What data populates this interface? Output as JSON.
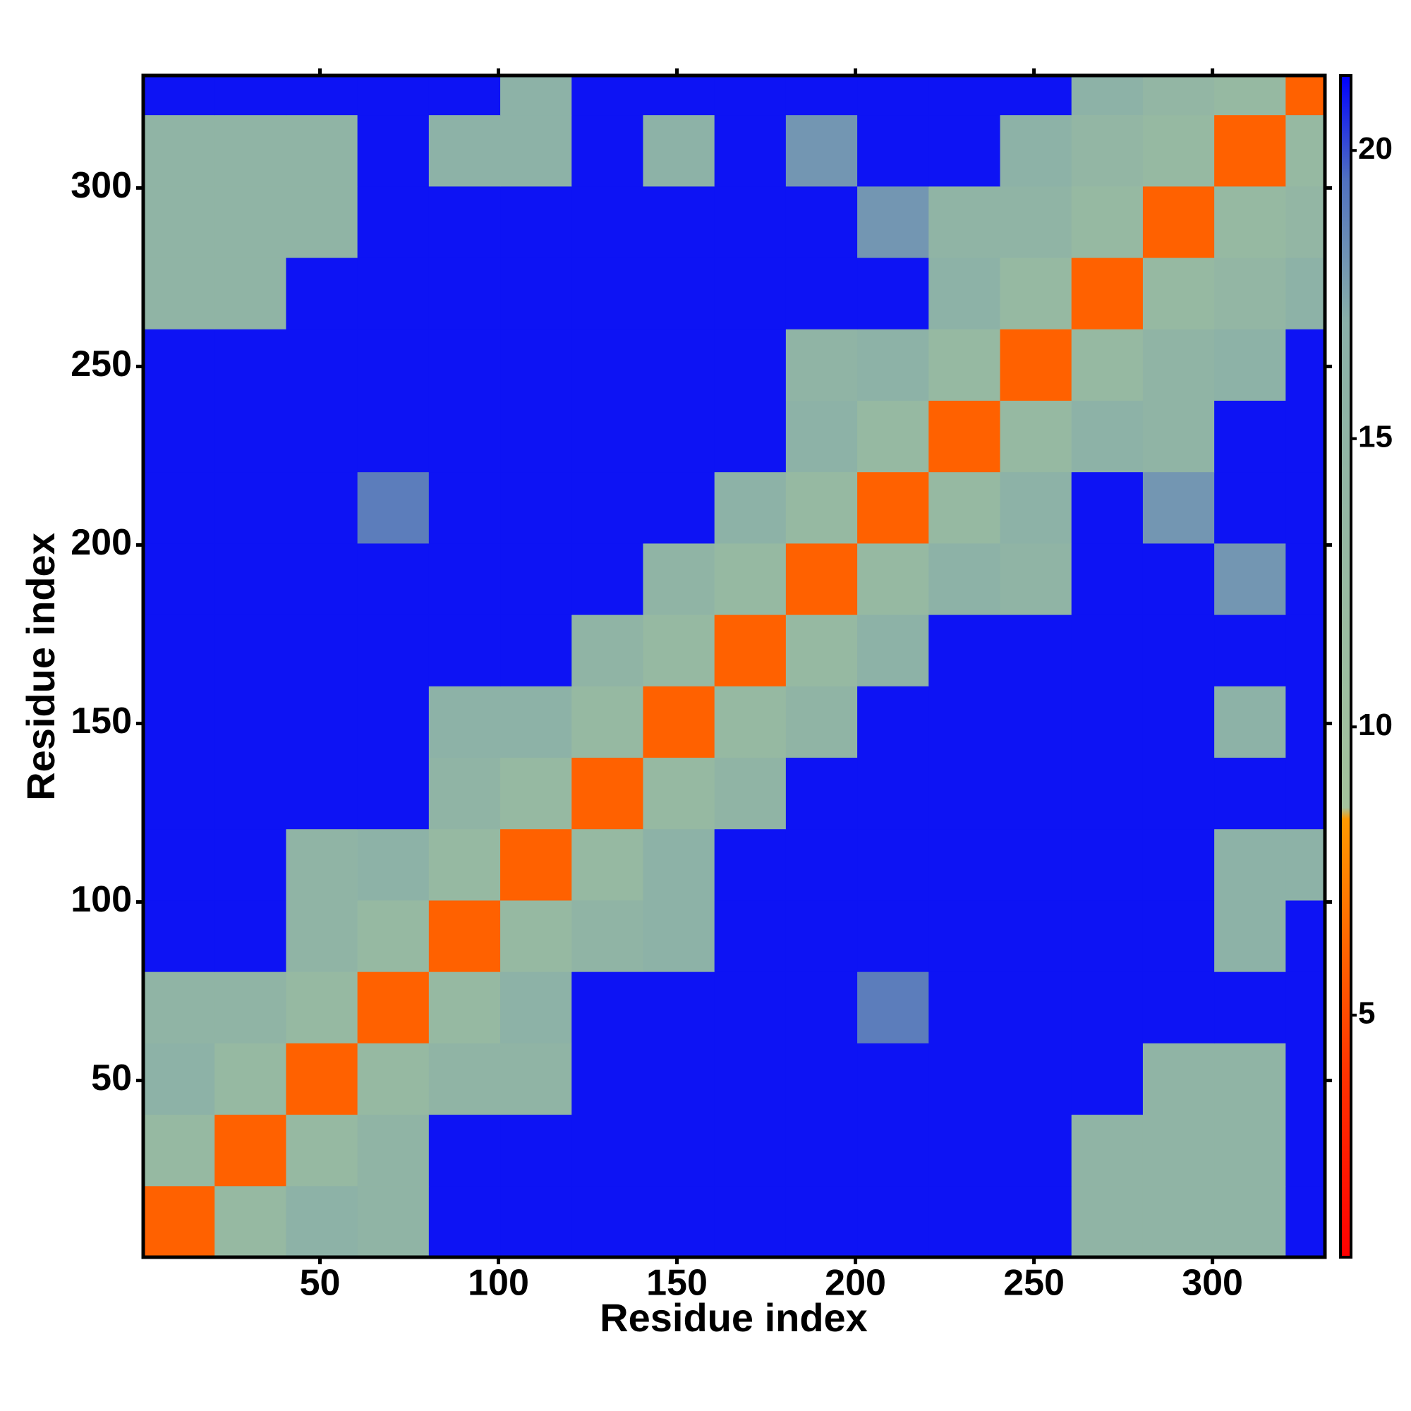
{
  "chart_data": {
    "type": "heatmap",
    "x_label": "Residue index",
    "y_label": "Residue index",
    "xbins": [
      0.5,
      20.5,
      40.5,
      60.5,
      80.5,
      100.5,
      120.5,
      140.5,
      160.5,
      180.5,
      200.5,
      220.5,
      240.5,
      260.5,
      280.5,
      300.5,
      320.5,
      331.5
    ],
    "ybins": [
      0.5,
      20.5,
      40.5,
      60.5,
      80.5,
      100.5,
      120.5,
      140.5,
      160.5,
      180.5,
      200.5,
      220.5,
      240.5,
      260.5,
      280.5,
      300.5,
      320.5,
      331.5
    ],
    "values": [
      [
        6,
        13,
        16,
        15,
        21,
        21,
        21,
        21,
        21,
        21,
        21,
        21,
        21,
        15,
        15,
        15,
        21
      ],
      [
        13,
        6,
        13,
        15,
        21,
        21,
        21,
        21,
        21,
        21,
        21,
        21,
        21,
        15,
        15,
        15,
        21
      ],
      [
        16,
        13,
        6,
        13,
        15,
        15,
        21,
        21,
        21,
        21,
        21,
        21,
        21,
        21,
        15,
        15,
        21
      ],
      [
        15,
        15,
        13,
        6,
        13,
        16,
        21,
        21,
        21,
        21,
        19,
        21,
        21,
        21,
        21,
        21,
        21
      ],
      [
        21,
        21,
        15,
        13,
        6,
        13,
        15,
        16,
        21,
        21,
        21,
        21,
        21,
        21,
        21,
        16,
        21
      ],
      [
        21,
        21,
        15,
        16,
        13,
        6,
        13,
        16,
        21,
        21,
        21,
        21,
        21,
        21,
        21,
        16,
        16
      ],
      [
        21,
        21,
        21,
        21,
        15,
        13,
        6,
        13,
        15,
        21,
        21,
        21,
        21,
        21,
        21,
        21,
        21
      ],
      [
        21,
        21,
        21,
        21,
        16,
        16,
        13,
        6,
        13,
        15,
        21,
        21,
        21,
        21,
        21,
        16,
        21
      ],
      [
        21,
        21,
        21,
        21,
        21,
        21,
        15,
        13,
        6,
        13,
        16,
        21,
        21,
        21,
        21,
        21,
        21
      ],
      [
        21,
        21,
        21,
        21,
        21,
        21,
        21,
        15,
        13,
        6,
        13,
        16,
        15,
        21,
        21,
        18,
        21
      ],
      [
        21,
        21,
        21,
        19,
        21,
        21,
        21,
        21,
        16,
        13,
        6,
        13,
        16,
        21,
        18,
        21,
        21
      ],
      [
        21,
        21,
        21,
        21,
        21,
        21,
        21,
        21,
        21,
        16,
        13,
        6,
        13,
        16,
        15,
        21,
        21
      ],
      [
        21,
        21,
        21,
        21,
        21,
        21,
        21,
        21,
        21,
        15,
        16,
        13,
        6,
        13,
        15,
        16,
        21
      ],
      [
        15,
        15,
        21,
        21,
        21,
        21,
        21,
        21,
        21,
        21,
        21,
        16,
        13,
        6,
        13,
        14,
        16
      ],
      [
        15,
        15,
        15,
        21,
        21,
        21,
        21,
        21,
        21,
        21,
        18,
        15,
        15,
        13,
        6,
        13,
        14
      ],
      [
        15,
        15,
        15,
        21,
        16,
        16,
        21,
        16,
        21,
        18,
        21,
        21,
        16,
        14,
        13,
        6,
        13
      ],
      [
        21,
        21,
        21,
        21,
        21,
        16,
        21,
        21,
        21,
        21,
        21,
        21,
        21,
        16,
        14,
        13,
        6
      ]
    ],
    "xlim": [
      0.5,
      331.5
    ],
    "ylim": [
      0.5,
      331.5
    ],
    "xticks": [
      50,
      100,
      150,
      200,
      250,
      300
    ],
    "yticks": [
      50,
      100,
      150,
      200,
      250,
      300
    ],
    "colorbar": {
      "lim": [
        0.8,
        21.3
      ],
      "ticks": [
        5,
        10,
        15,
        20
      ]
    },
    "colorscale": [
      {
        "value": 0.8,
        "color": "#ff0000"
      },
      {
        "value": 4,
        "color": "#ff3300"
      },
      {
        "value": 8.4,
        "color": "#ff9900"
      },
      {
        "value": 8.6,
        "color": "#a3c29c"
      },
      {
        "value": 17,
        "color": "#8ab0a8"
      },
      {
        "value": 19.5,
        "color": "#5070c0"
      },
      {
        "value": 21.3,
        "color": "#0000ff"
      }
    ]
  }
}
